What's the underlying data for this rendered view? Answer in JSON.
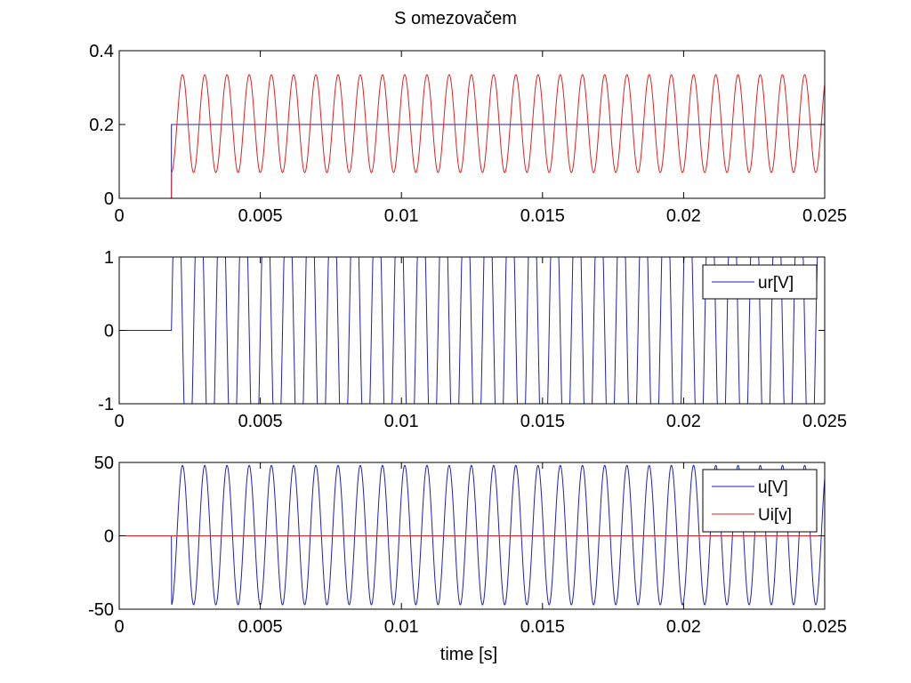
{
  "figure": {
    "title": "S omezovačem",
    "xlabel": "time [s]"
  },
  "chart_data": [
    {
      "type": "line",
      "title": "S omezovačem",
      "xlim": [
        0,
        0.025
      ],
      "ylim": [
        0,
        0.4
      ],
      "xticks": [
        "0",
        "0.005",
        "0.01",
        "0.015",
        "0.02",
        "0.025"
      ],
      "yticks": [
        "0",
        "0.2",
        "0.4"
      ],
      "grid": false,
      "legend": null,
      "series": [
        {
          "color": "#1f1fb4",
          "kind": "step",
          "x": [
            0,
            0.00185,
            0.00185,
            0.025
          ],
          "y": [
            0,
            0,
            0.2,
            0.2
          ]
        },
        {
          "color": "#e02020",
          "kind": "oscillation",
          "start": 0.00185,
          "frequency_hz": 1270,
          "min": 0.07,
          "max": 0.335,
          "initial": 0
        }
      ]
    },
    {
      "type": "line",
      "xlim": [
        0,
        0.025
      ],
      "ylim": [
        -1,
        1
      ],
      "xticks": [
        "0",
        "0.005",
        "0.01",
        "0.015",
        "0.02",
        "0.025"
      ],
      "yticks": [
        "-1",
        "0",
        "1"
      ],
      "grid": false,
      "legend": "top-right",
      "series": [
        {
          "name": "ur[V]",
          "color": "#1f1fb4",
          "kind": "oscillation-clipped",
          "start": 0.00185,
          "frequency_hz": 1270,
          "amplitude": 2.5,
          "clip": [
            -1,
            1
          ],
          "before": 0
        }
      ]
    },
    {
      "type": "line",
      "xlim": [
        0,
        0.025
      ],
      "ylim": [
        -50,
        50
      ],
      "xticks": [
        "0",
        "0.005",
        "0.01",
        "0.015",
        "0.02",
        "0.025"
      ],
      "yticks": [
        "-50",
        "0",
        "50"
      ],
      "xlabel": "time [s]",
      "grid": false,
      "legend": "top-right",
      "series": [
        {
          "name": "u[V]",
          "color": "#1f1fb4",
          "kind": "oscillation",
          "start": 0.00185,
          "frequency_hz": 1270,
          "min": -47,
          "max": 48,
          "initial": 0
        },
        {
          "name": "Ui[v]",
          "color": "#e02020",
          "kind": "constant",
          "value": 0
        }
      ]
    }
  ]
}
